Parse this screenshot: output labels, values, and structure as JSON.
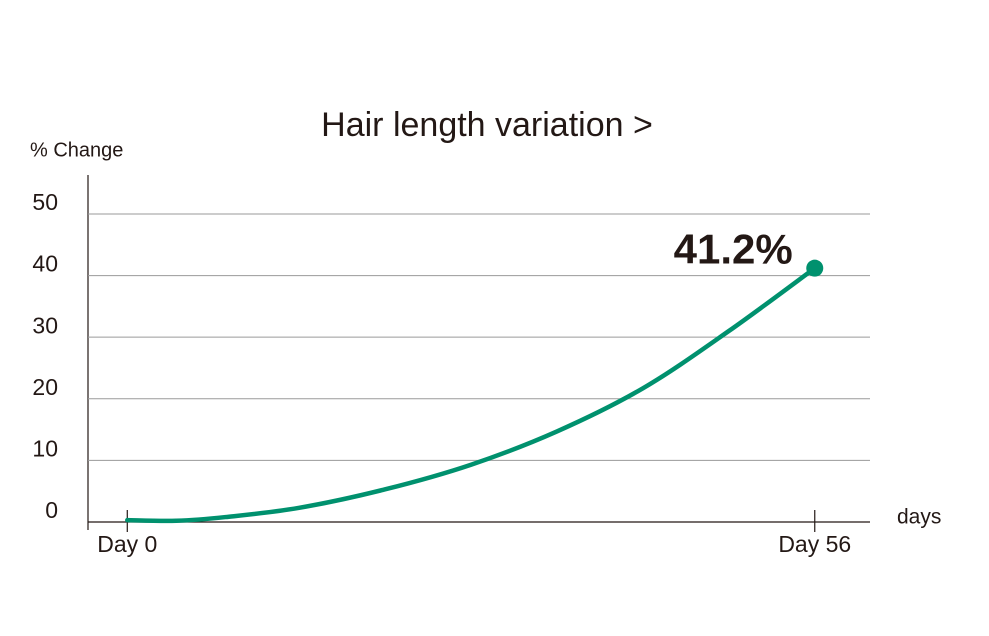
{
  "chart_data": {
    "type": "line",
    "title": "Hair length variation >",
    "y_label": "% Change",
    "x_label": "days",
    "x": [
      0,
      4,
      8,
      14,
      21,
      28,
      35,
      42,
      49,
      56
    ],
    "series": [
      {
        "name": "Hair length",
        "color": "#00916e",
        "values": [
          0.3,
          0.2,
          0.8,
          2.3,
          5.3,
          9.3,
          14.7,
          21.7,
          31,
          41.2
        ],
        "value_labels": [
          null,
          null,
          null,
          null,
          null,
          null,
          null,
          null,
          null,
          "41.2%"
        ]
      }
    ],
    "xlim": [
      -3.2,
      60.5
    ],
    "xticks": [
      {
        "value": 0,
        "label": "Day 0"
      },
      {
        "value": 56,
        "label": "Day 56"
      }
    ],
    "ylim": [
      0,
      56
    ],
    "yticks": [
      0,
      10,
      20,
      30,
      40,
      50
    ],
    "grid": true
  }
}
